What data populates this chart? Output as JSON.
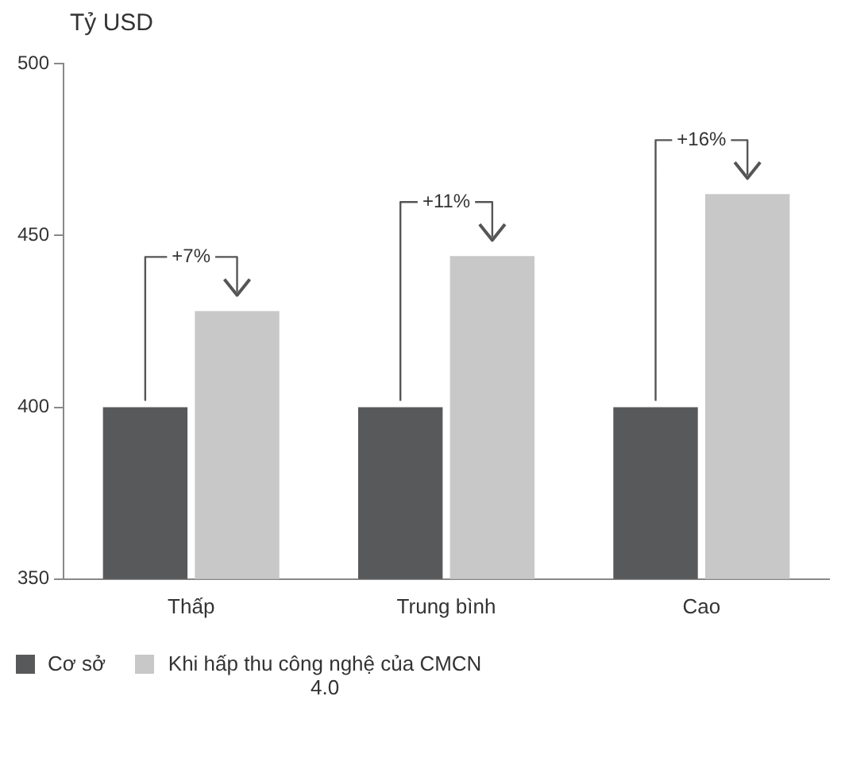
{
  "chart_data": {
    "type": "bar",
    "ylabel": "Tỷ USD",
    "categories": [
      "Thấp",
      "Trung bình",
      "Cao"
    ],
    "series": [
      {
        "name": "Cơ sở",
        "color": "#58595b",
        "values": [
          400,
          400,
          400
        ]
      },
      {
        "name": "Khi hấp thu công nghệ của CMCN 4.0",
        "color": "#c8c8c8",
        "values": [
          428,
          444,
          462
        ]
      }
    ],
    "ylim": [
      350,
      500
    ],
    "yticks": [
      350,
      400,
      450,
      500
    ],
    "grid": false,
    "legend": "bottom",
    "annotations": [
      {
        "text": "+7%",
        "x": "Thấp",
        "y": 428
      },
      {
        "text": "+11%",
        "x": "Trung bình",
        "y": 444
      },
      {
        "text": "+16%",
        "x": "Cao",
        "y": 462
      }
    ]
  }
}
